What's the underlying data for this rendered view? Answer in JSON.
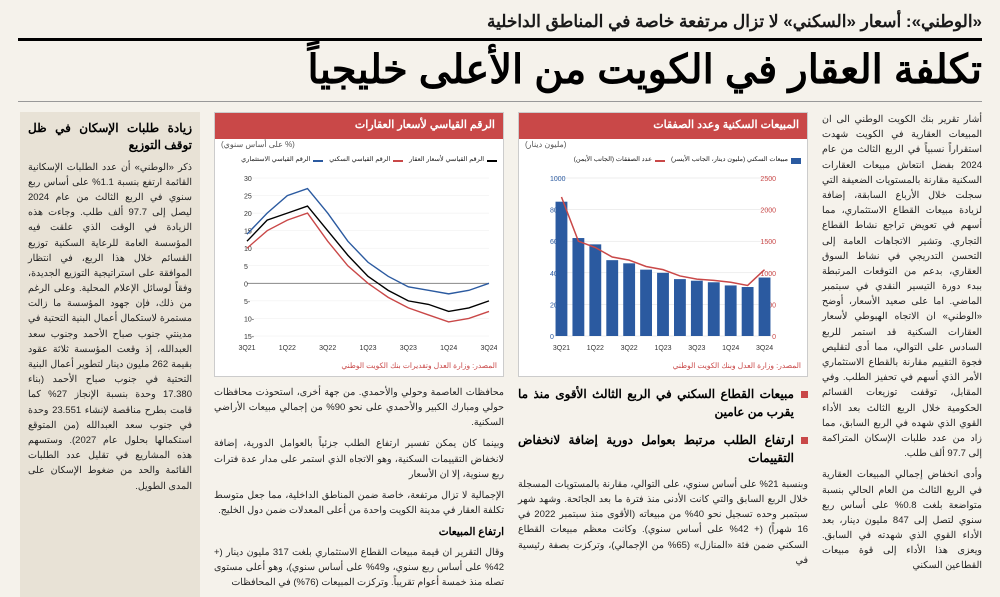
{
  "kicker": "«الوطني»: أسعار «السكني» لا تزال مرتفعة خاصة في المناطق الداخلية",
  "headline": "تكلفة العقار في الكويت من الأعلى خليجياً",
  "col1": {
    "p1": "أشار تقرير بنك الكويت الوطني الى ان المبيعات العقارية في الكويت شهدت استقراراً نسبياً في الربع الثالث من عام 2024 بفضل انتعاش مبيعات العقارات السكنية مقارنة بالمستويات الضعيفة التي سجلت خلال الأرباع السابقة، إضافة لزيادة مبيعات القطاع الاستثماري، مما أسهم في تعويض تراجع نشاط القطاع التجاري. وتشير الاتجاهات العامة إلى التحسن التدريجي في نشاط السوق العقاري، بدعم من التوقعات المرتبطة ببدء دورة التيسير النقدي في سبتمبر الماضي. اما على صعيد الأسعار، أوضح «الوطني» ان الاتجاه الهبوطي لأسعار العقارات السكنية قد استمر للربع السادس على التوالي، مما أدى لتقليص فجوة التقييم مقارنة بالقطاع الاستثماري الأمر الذي أسهم في تحفيز الطلب. وفي المقابل، توقفت توزيعات القسائم الحكومية خلال الربع الثالث بعد الأداء القوي الذي شهده في الربع السابق، مما زاد من عدد طلبات الإسكان المتراكمة إلى 97.7 ألف طلب.",
    "p2": "وأدى انخفاض إجمالي المبيعات العقارية في الربع الثالث من العام الحالي بنسبة متواضعة بلغت 0.8% على أساس ربع سنوي لتصل إلى 847 مليون دينار، بعد الأداء القوي الذي شهدته في السابق. ويعزى هذا الأداء إلى قوة مبيعات القطاعين السكني"
  },
  "col2": {
    "bullets": [
      "مبيعات القطاع السكني في الربع الثالث الأقوى منذ ما يقرب من عامين",
      "ارتفاع الطلب مرتبط بعوامل دورية إضافة لانخفاض التقييمات"
    ],
    "p1": "وبنسبة 21% على أساس سنوي، على التوالي، مقارنة بالمستويات المسجلة خلال الربع السابق والتي كانت الأدنى منذ فترة ما بعد الجائحة. وشهد شهر سبتمبر وحده تسجيل نحو 40% من مبيعاته (الأقوى منذ سبتمبر 2022 في 16 شهراً) (+ 42% على أساس سنوي). وكانت معظم مبيعات القطاع السكني ضمن فئة «المنازل» (65% من الإجمالي)، وتركزت بصفة رئيسية في"
  },
  "col3": {
    "p1": "محافظات العاصمة وحولي والأحمدي. من جهة أخرى، استحوذت محافظات حولي ومبارك الكبير والأحمدي على نحو 90% من إجمالي مبيعات الأراضي السكنية.",
    "p2": "وبينما كان يمكن تفسير ارتفاع الطلب جزئياً بالعوامل الدورية، إضافة لانخفاض التقييمات السكنية، وهو الاتجاه الذي استمر على مدار عدة فترات ربع سنوية، إلا ان الأسعار",
    "p3": "الإجمالية لا تزال مرتفعة، خاصة ضمن المناطق الداخلية، مما جعل متوسط تكلفة العقار في مدينة الكويت واحدة من أعلى المعدلات ضمن دول الخليج.",
    "sub1": "ارتفاع المبيعات",
    "p4": "وقال التقرير ان قيمة مبيعات القطاع الاستثماري بلغت 317 مليون دينار (+ 42% على أساس ربع سنوي، و49% على أساس سنوي)، وهو أعلى مستوى تصله منذ خمسة أعوام تقريباً. وتركزت المبيعات (76%) في المحافظات"
  },
  "sidebar": {
    "head": "زيادة طلبات الإسكان في ظل توقف التوزيع",
    "p1": "ذكر «الوطني» أن عدد الطلبات الإسكانية القائمة ارتفع بنسبة 1.1% على أساس ربع سنوي في الربع الثالث من عام 2024 ليصل إلى 97.7 ألف طلب. وجاءت هذه الزيادة في الوقت الذي علقت فيه المؤسسة العامة للرعاية السكنية توزيع القسائم خلال هذا الربع، في انتظار الموافقة على استراتيجية التوزيع الجديدة، وفقاً لوسائل الإعلام المحلية. وعلى الرغم من ذلك، فإن جهود المؤسسة ما زالت مستمرة لاستكمال أعمال البنية التحتية في مدينتي جنوب صباح الأحمد وجنوب سعد العبدالله، إذ وقعت المؤسسة ثلاثة عقود بقيمة 262 مليون دينار لتطوير أعمال البنية التحتية في جنوب صباح الأحمد (بناء 17.380 وحدة بنسبة الإنجاز 27% كما قامت بطرح مناقصة لإنشاء 23.551 وحدة في جنوب سعد العبدالله (من المتوقع استكمالها بحلول عام 2027). وستسهم هذه المشاريع في تقليل عدد الطلبات القائمة والحد من ضغوط الإسكان على المدى الطويل."
  },
  "chart1": {
    "title": "المبيعات السكنية وعدد الصفقات",
    "unit": "(مليون دينار)",
    "source": "المصدر: وزارة العدل وبنك الكويت الوطني",
    "x_labels": [
      "3Q21",
      "1Q22",
      "3Q22",
      "1Q23",
      "3Q23",
      "1Q24",
      "3Q24"
    ],
    "left_axis": {
      "ticks": [
        0,
        200,
        400,
        600,
        800,
        1000
      ],
      "color": "#2b5aa0"
    },
    "right_axis": {
      "ticks": [
        0,
        500,
        1000,
        1500,
        2000,
        2500
      ],
      "color": "#c94848"
    },
    "bars": [
      850,
      620,
      580,
      480,
      460,
      420,
      400,
      360,
      350,
      340,
      320,
      310,
      370
    ],
    "bar_color": "#2b5aa0",
    "line": [
      2200,
      1500,
      1400,
      1250,
      1200,
      1100,
      1050,
      950,
      900,
      880,
      850,
      800,
      1050
    ],
    "line_color": "#c94848",
    "legend": [
      "مبيعات السكني (مليون دينار، الجانب الأيسر)",
      "عدد الصفقات (الجانب الأيمن)"
    ]
  },
  "chart2": {
    "title": "الرقم القياسي لأسعار العقارات",
    "unit": "(% على أساس سنوي)",
    "source": "المصدر: وزارة العدل وتقديرات بنك الكويت الوطني",
    "x_labels": [
      "3Q21",
      "1Q22",
      "3Q22",
      "1Q23",
      "3Q23",
      "1Q24",
      "3Q24"
    ],
    "y_ticks": [
      -15,
      -10,
      -5,
      0,
      5,
      10,
      15,
      20,
      25,
      30
    ],
    "series": [
      {
        "name": "الرقم القياسي لأسعار العقار",
        "color": "#000",
        "data": [
          12,
          18,
          20,
          22,
          15,
          8,
          2,
          -2,
          -5,
          -6,
          -8,
          -7,
          -5
        ]
      },
      {
        "name": "الرقم القياسي السكني",
        "color": "#c94848",
        "data": [
          10,
          15,
          18,
          20,
          12,
          5,
          0,
          -4,
          -7,
          -9,
          -11,
          -10,
          -8
        ]
      },
      {
        "name": "الرقم القياسي الاستثماري",
        "color": "#2b5aa0",
        "data": [
          14,
          20,
          25,
          27,
          20,
          12,
          6,
          2,
          -1,
          -2,
          -3,
          -2,
          0
        ]
      }
    ]
  }
}
